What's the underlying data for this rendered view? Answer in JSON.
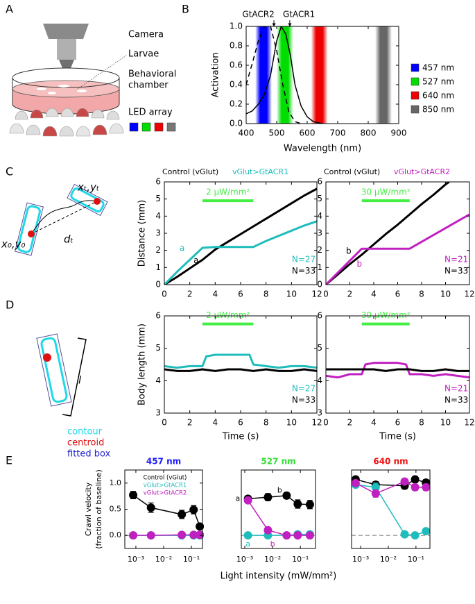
{
  "panel_labels": [
    "A",
    "B",
    "C",
    "D",
    "E"
  ],
  "setup": {
    "labels": [
      "Camera",
      "Larvae",
      "Behavioral",
      "chamber",
      "LED array"
    ]
  },
  "tracking": {
    "labels": [
      "xₜ,yₜ",
      "x₀,y₀",
      "dₜ"
    ]
  },
  "body": {
    "length_label": "l",
    "legend": [
      {
        "name": "contour",
        "color": "#1fd8e8"
      },
      {
        "name": "centroid",
        "color": "#e01010"
      },
      {
        "name": "fitted box",
        "color": "#2020d0"
      }
    ]
  },
  "chart_data": [
    {
      "type": "line",
      "x_label": "Wavelength (nm)",
      "y_label": "Activation",
      "xlim": [
        400,
        900
      ],
      "ylim": [
        0,
        1
      ],
      "xticks": [
        400,
        500,
        600,
        700,
        800,
        900
      ],
      "yticks": [
        {
          "value": 0,
          "label": "0.0"
        },
        0.2,
        0.4,
        0.6,
        0.8,
        {
          "value": 1,
          "label": "1.0"
        }
      ],
      "legend": "right",
      "bands": [
        {
          "name": "457 nm",
          "center": 457,
          "color": "#0000ff"
        },
        {
          "name": "527 nm",
          "center": 527,
          "color": "#00dd00"
        },
        {
          "name": "640 nm",
          "center": 640,
          "color": "#ee0000"
        },
        {
          "name": "850 nm",
          "center": 850,
          "color": "#666666"
        }
      ],
      "series": [
        {
          "color": "#000000",
          "dash": true,
          "x": [
            400,
            420,
            440,
            460,
            480,
            500,
            520,
            540,
            560,
            580
          ],
          "values": [
            0.4,
            0.62,
            0.85,
            1.0,
            1.0,
            0.75,
            0.4,
            0.12,
            0.02,
            0
          ]
        },
        {
          "color": "#000000",
          "x": [
            400,
            420,
            440,
            460,
            480,
            500,
            515,
            530,
            545,
            560,
            580,
            600,
            620,
            650
          ],
          "values": [
            0.1,
            0.13,
            0.2,
            0.3,
            0.5,
            0.85,
            1.0,
            0.92,
            0.7,
            0.4,
            0.18,
            0.07,
            0.02,
            0
          ]
        }
      ],
      "annotations": [
        {
          "text": "GtACR2",
          "x": 440,
          "y": 1.12,
          "xy": [
            491,
            1.0
          ]
        },
        {
          "text": "GtACR1",
          "x": 573,
          "y": 1.12,
          "xy": [
            543,
            1.0
          ]
        }
      ]
    },
    {
      "type": "line",
      "y_label": "Distance (mm)",
      "xlim": [
        0,
        12
      ],
      "ylim": [
        0,
        6
      ],
      "xticks": [
        0,
        2,
        4,
        6,
        8,
        10,
        12
      ],
      "yticks": [
        0,
        1,
        2,
        3,
        4,
        5,
        6
      ],
      "legend": "top",
      "x": [
        0,
        1,
        2,
        3,
        4,
        5,
        6,
        7,
        8,
        9,
        10,
        11,
        12
      ],
      "series": [
        {
          "name": "Control (vGlut)",
          "color": "#000000",
          "values": [
            0,
            0.45,
            0.95,
            1.45,
            2.05,
            2.5,
            2.95,
            3.4,
            3.85,
            4.3,
            4.75,
            5.2,
            5.6
          ]
        },
        {
          "name": "vGlut>GtACR1",
          "color": "#1fbcbc",
          "values": [
            0,
            0.75,
            1.45,
            2.15,
            2.2,
            2.2,
            2.2,
            2.2,
            2.55,
            2.85,
            3.15,
            3.45,
            3.7
          ]
        }
      ],
      "stimulus": {
        "label": "2 μW/mm²",
        "x": [
          3,
          7
        ],
        "y": 4.9,
        "color": "#44ee44"
      },
      "annotations": [
        {
          "text": "a",
          "x": 1.4,
          "y": 2.1,
          "color": "#1fbcbc"
        },
        {
          "text": "a",
          "x": 2.5,
          "y": 1.4,
          "color": "#000000"
        },
        {
          "text": "N=27",
          "x": 11.9,
          "y": 1.45,
          "color": "#1fbcbc"
        },
        {
          "text": "N=33",
          "x": 11.9,
          "y": 0.8,
          "color": "#000000"
        }
      ]
    },
    {
      "type": "line",
      "xlim": [
        0,
        12
      ],
      "ylim": [
        0,
        6
      ],
      "xticks": [
        0,
        2,
        4,
        6,
        8,
        10,
        12
      ],
      "yticks": [
        0,
        1,
        2,
        3,
        4,
        5,
        6
      ],
      "legend": "top",
      "x": [
        0,
        1,
        2,
        3,
        4,
        5,
        6,
        7,
        8,
        9,
        10,
        11,
        12
      ],
      "series": [
        {
          "name": "Control (vGlut)",
          "color": "#000000",
          "x": [
            0,
            1,
            2,
            3,
            4,
            5,
            6,
            7,
            8,
            9,
            10,
            10.3
          ],
          "values": [
            0,
            0.6,
            1.2,
            1.75,
            2.35,
            2.95,
            3.5,
            4.1,
            4.7,
            5.25,
            5.85,
            6.0
          ]
        },
        {
          "name": "vGlut>GtACR2",
          "color": "#c020c0",
          "values": [
            0,
            0.7,
            1.4,
            2.1,
            2.1,
            2.1,
            2.1,
            2.1,
            2.5,
            2.9,
            3.3,
            3.7,
            4.1
          ]
        }
      ],
      "stimulus": {
        "label": "30 μW/mm²",
        "x": [
          3,
          7
        ],
        "y": 4.9,
        "color": "#44ee44"
      },
      "annotations": [
        {
          "text": "b",
          "x": 1.9,
          "y": 1.95,
          "color": "#000000"
        },
        {
          "text": "b",
          "x": 2.8,
          "y": 1.2,
          "color": "#c020c0"
        },
        {
          "text": "N=21",
          "x": 11.9,
          "y": 1.45,
          "color": "#c020c0"
        },
        {
          "text": "N=33",
          "x": 11.9,
          "y": 0.8,
          "color": "#000000"
        }
      ]
    },
    {
      "type": "line",
      "x_label": "Time (s)",
      "y_label": "Body length (mm)",
      "xlim": [
        0,
        12
      ],
      "ylim": [
        3,
        6
      ],
      "xticks": [
        0,
        2,
        4,
        6,
        8,
        10,
        12
      ],
      "yticks": [
        3,
        4,
        5,
        6
      ],
      "x": [
        0,
        1,
        2,
        3,
        4,
        5,
        6,
        7,
        8,
        9,
        10,
        11,
        12
      ],
      "series": [
        {
          "color": "#1fbcbc",
          "x": [
            0,
            1,
            2,
            3,
            3.3,
            4,
            5,
            6,
            6.7,
            7,
            8,
            9,
            10,
            11,
            12
          ],
          "values": [
            4.45,
            4.4,
            4.45,
            4.45,
            4.75,
            4.8,
            4.8,
            4.8,
            4.8,
            4.5,
            4.45,
            4.4,
            4.45,
            4.45,
            4.4
          ]
        },
        {
          "color": "#000000",
          "values": [
            4.35,
            4.3,
            4.3,
            4.35,
            4.3,
            4.35,
            4.35,
            4.3,
            4.35,
            4.3,
            4.3,
            4.35,
            4.3
          ]
        }
      ],
      "stimulus": {
        "label": "2 μW/mm²",
        "x": [
          3,
          7
        ],
        "y": 5.75,
        "color": "#44ee44"
      },
      "annotations": [
        {
          "text": "N=27",
          "x": 11.9,
          "y": 3.75,
          "color": "#1fbcbc"
        },
        {
          "text": "N=33",
          "x": 11.9,
          "y": 3.4,
          "color": "#000000"
        }
      ]
    },
    {
      "type": "line",
      "x_label": "Time (s)",
      "xlim": [
        0,
        12
      ],
      "ylim": [
        3,
        6
      ],
      "xticks": [
        0,
        2,
        4,
        6,
        8,
        10,
        12
      ],
      "yticks": [
        3,
        4,
        5,
        6
      ],
      "x": [
        0,
        1,
        2,
        3,
        4,
        5,
        6,
        7,
        8,
        9,
        10,
        11,
        12
      ],
      "series": [
        {
          "color": "#c020c0",
          "x": [
            0,
            1,
            2,
            3,
            3.3,
            4,
            5,
            6,
            6.7,
            7,
            8,
            9,
            10,
            11,
            12
          ],
          "values": [
            4.15,
            4.1,
            4.2,
            4.2,
            4.5,
            4.55,
            4.55,
            4.55,
            4.5,
            4.2,
            4.2,
            4.15,
            4.2,
            4.15,
            4.1
          ]
        },
        {
          "color": "#000000",
          "values": [
            4.35,
            4.35,
            4.35,
            4.35,
            4.35,
            4.3,
            4.35,
            4.35,
            4.3,
            4.3,
            4.35,
            4.3,
            4.3
          ]
        }
      ],
      "stimulus": {
        "label": "30 μW/mm²",
        "x": [
          3,
          7
        ],
        "y": 5.75,
        "color": "#44ee44"
      },
      "annotations": [
        {
          "text": "N=21",
          "x": 11.9,
          "y": 3.75,
          "color": "#c020c0"
        },
        {
          "text": "N=33",
          "x": 11.9,
          "y": 3.4,
          "color": "#000000"
        }
      ]
    },
    {
      "type": "line",
      "markers": true,
      "title": "457 nm",
      "title_color": "#1a1aff",
      "y_label": [
        "Crawl velocity",
        "(fraction of baseline)"
      ],
      "log_x": true,
      "xlim": [
        0.0004,
        0.25
      ],
      "ylim": [
        -0.25,
        1.25
      ],
      "xticks": [
        {
          "value": 0.001,
          "label": "10⁻³"
        },
        {
          "value": 0.01,
          "label": "10⁻²"
        },
        {
          "value": 0.1,
          "label": "10⁻¹"
        }
      ],
      "yticks": [
        {
          "value": 0,
          "label": "0.0"
        },
        0.5,
        {
          "value": 1,
          "label": "1.0"
        }
      ],
      "hline": 0,
      "legend": "upper center",
      "series": [
        {
          "name": "Control (vGlut)",
          "color": "#000000",
          "x": [
            0.0008,
            0.0035,
            0.045,
            0.12,
            0.2
          ],
          "values": [
            0.77,
            0.53,
            0.4,
            0.49,
            0.17
          ],
          "errors": [
            0.07,
            0.09,
            0.08,
            0.08,
            0.05
          ]
        },
        {
          "name": "vGlut>GtACR1",
          "color": "#1fbcbc",
          "x": [
            0.0008,
            0.0035,
            0.045,
            0.12,
            0.2
          ],
          "values": [
            0,
            0,
            0,
            0,
            0
          ],
          "errors": [
            0.02,
            0.02,
            0.02,
            0.02,
            0.02
          ]
        },
        {
          "name": "vGlut>GtACR2",
          "color": "#c020c0",
          "x": [
            0.0008,
            0.0035,
            0.045,
            0.12,
            0.2
          ],
          "values": [
            0,
            0,
            0.01,
            0.01,
            0.01
          ],
          "errors": [
            0.02,
            0.02,
            0.02,
            0.02,
            0.02
          ]
        }
      ]
    },
    {
      "type": "line",
      "markers": true,
      "title": "527 nm",
      "title_color": "#33dd33",
      "x_label": "Light intensity (mW/mm²)",
      "log_x": true,
      "xlim": [
        0.00075,
        0.35
      ],
      "ylim": [
        -0.25,
        1.25
      ],
      "xticks": [
        {
          "value": 0.001,
          "label": "10⁻³"
        },
        {
          "value": 0.01,
          "label": "10⁻²"
        },
        {
          "value": 0.1,
          "label": "10⁻¹"
        }
      ],
      "hline": 0,
      "series": [
        {
          "color": "#000000",
          "x": [
            0.0013,
            0.0068,
            0.032,
            0.08,
            0.22
          ],
          "values": [
            0.7,
            0.73,
            0.76,
            0.6,
            0.59
          ],
          "errors": [
            0.06,
            0.07,
            0.06,
            0.08,
            0.08
          ]
        },
        {
          "color": "#1fbcbc",
          "x": [
            0.0013,
            0.0068,
            0.032,
            0.08,
            0.22
          ],
          "values": [
            0,
            0,
            0,
            0.02,
            0.02
          ],
          "errors": [
            0.03,
            0.03,
            0.03,
            0.03,
            0.03
          ]
        },
        {
          "color": "#c020c0",
          "x": [
            0.0013,
            0.0068,
            0.032,
            0.08,
            0.22
          ],
          "values": [
            0.67,
            0.1,
            0,
            0,
            0
          ],
          "errors": [
            0.05,
            0.03,
            0.02,
            0.02,
            0.02
          ]
        }
      ],
      "annotations": [
        {
          "text": "a",
          "x": 0.00056,
          "y": 0.7,
          "color": "#000000"
        },
        {
          "text": "b",
          "x": 0.018,
          "y": 0.86,
          "color": "#000000"
        },
        {
          "text": "a",
          "x": 0.0013,
          "y": -0.17,
          "color": "#1fbcbc"
        },
        {
          "text": "b",
          "x": 0.01,
          "y": -0.17,
          "color": "#c020c0"
        }
      ]
    },
    {
      "type": "line",
      "markers": true,
      "title": "640 nm",
      "title_color": "#ee1111",
      "log_x": true,
      "xlim": [
        0.00047,
        0.32
      ],
      "ylim": [
        -0.25,
        1.25
      ],
      "xticks": [
        {
          "value": 0.001,
          "label": "10⁻³"
        },
        {
          "value": 0.01,
          "label": "10⁻²"
        },
        {
          "value": 0.1,
          "label": "10⁻¹"
        }
      ],
      "hline": 0,
      "series": [
        {
          "color": "#000000",
          "x": [
            0.00066,
            0.0035,
            0.039,
            0.093,
            0.23
          ],
          "values": [
            1.07,
            0.97,
            0.95,
            1.07,
            1.01
          ],
          "errors": [
            0.06,
            0.06,
            0.06,
            0.06,
            0.06
          ]
        },
        {
          "color": "#1fbcbc",
          "x": [
            0.00066,
            0.0035,
            0.039,
            0.093,
            0.23
          ],
          "values": [
            0.97,
            0.92,
            0.02,
            0,
            0.08
          ],
          "errors": [
            0.05,
            0.08,
            0.03,
            0.03,
            0.03
          ]
        },
        {
          "color": "#c020c0",
          "x": [
            0.00066,
            0.0035,
            0.039,
            0.093,
            0.23
          ],
          "values": [
            1.0,
            0.8,
            1.03,
            0.92,
            0.92
          ],
          "errors": [
            0.05,
            0.07,
            0.05,
            0.06,
            0.06
          ]
        }
      ]
    }
  ]
}
